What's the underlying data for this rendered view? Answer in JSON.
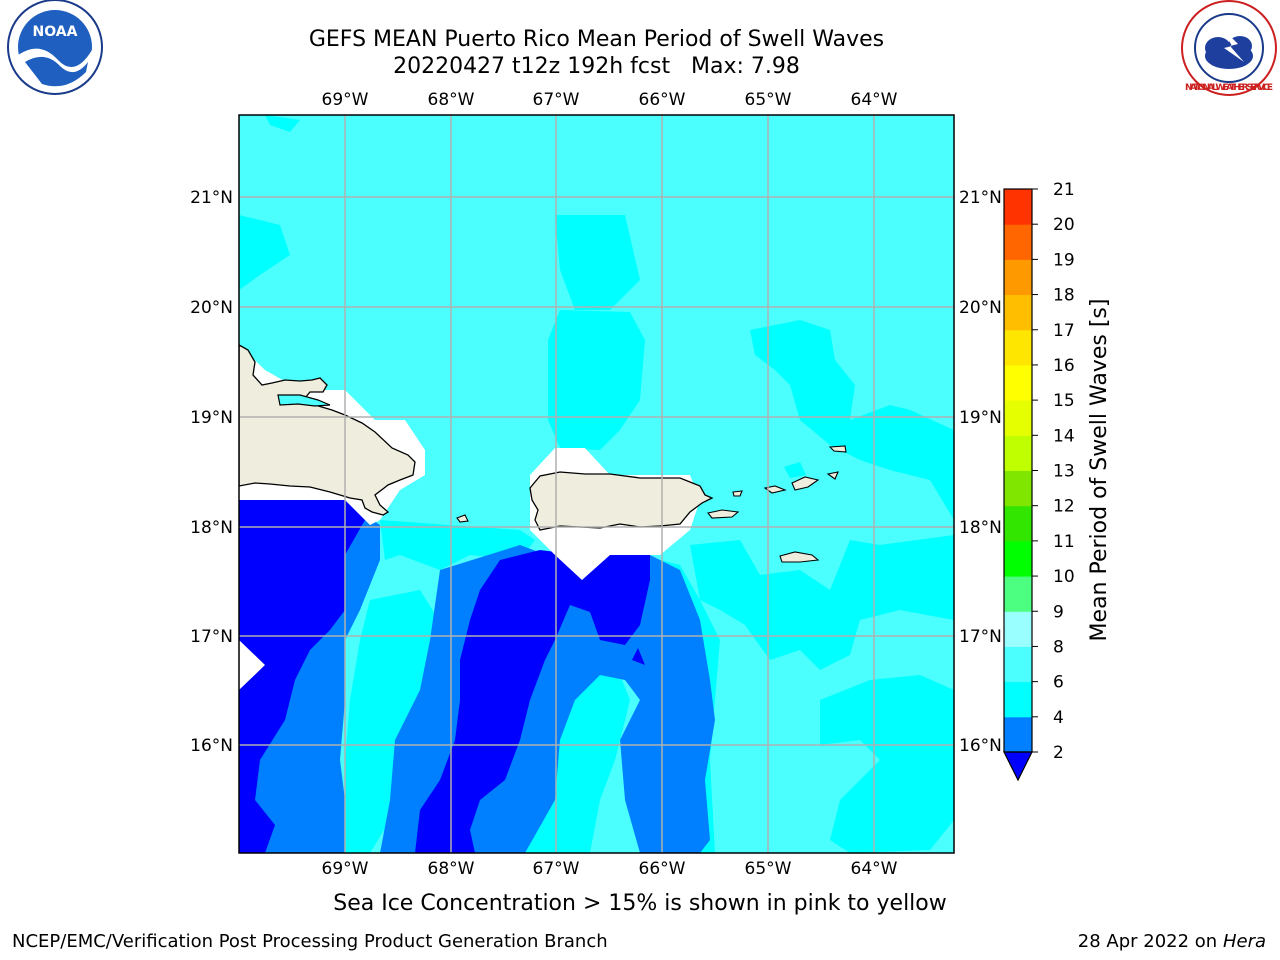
{
  "header": {
    "title_line1": "GEFS MEAN Puerto Rico Mean Period of Swell Waves",
    "title_line2": "20220427 t12z 192h fcst   Max: 7.98"
  },
  "map": {
    "lon_labels": [
      "69°W",
      "68°W",
      "67°W",
      "66°W",
      "65°W",
      "64°W"
    ],
    "lat_labels": [
      "21°N",
      "20°N",
      "19°N",
      "18°N",
      "17°N",
      "16°N"
    ],
    "colors": {
      "ocean_light": "#00ffff",
      "ocean_lighter": "#4cffff",
      "ocean_mid": "#0080ff",
      "ocean_dark": "#0000ff",
      "land": "#eeedde",
      "grid": "#b0b0b0"
    }
  },
  "colorbar": {
    "label": "Mean Period of Swell Waves [s]",
    "ticks": [
      "2",
      "4",
      "6",
      "8",
      "9",
      "10",
      "11",
      "12",
      "13",
      "14",
      "15",
      "16",
      "17",
      "18",
      "19",
      "20",
      "21"
    ],
    "colors": [
      "#0080ff",
      "#00ffff",
      "#4cffff",
      "#99ffff",
      "#4cff80",
      "#00ff00",
      "#33e600",
      "#80e600",
      "#bfff00",
      "#e6ff00",
      "#ffff00",
      "#ffe600",
      "#ffbf00",
      "#ff9900",
      "#ff6600",
      "#ff3300",
      "#ff0000"
    ],
    "under_color": "#0000ff"
  },
  "footer": {
    "note": "Sea Ice Concentration > 15% is shown in pink to yellow",
    "left": "NCEP/EMC/Verification Post Processing Product Generation Branch",
    "right_date": "28 Apr 2022 on",
    "right_host": "Hera"
  },
  "logos": {
    "noaa": "NOAA",
    "nws_ring": "NATIONAL WEATHER SERVICE"
  }
}
